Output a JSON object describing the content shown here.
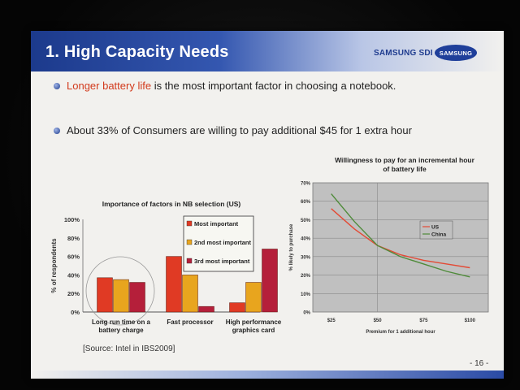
{
  "slide": {
    "title": "1. High Capacity Needs",
    "brand_text": "SAMSUNG SDI",
    "brand_logo_text": "SAMSUNG",
    "page_number": "- 16 -",
    "source": "[Source: Intel in IBS2009]",
    "bullets": [
      {
        "highlight": "Longer battery life",
        "rest": " is the most important factor in choosing a notebook."
      },
      {
        "highlight": "",
        "rest": "About 33% of Consumers are willing to pay additional $45 for 1 extra hour"
      }
    ],
    "colors": {
      "title_bar": "#1c3a8c",
      "highlight": "#d23a1c",
      "bar_1st": "#e03a24",
      "bar_2nd": "#e8a51e",
      "bar_3rd": "#b51f3a",
      "line_us": "#e34a35",
      "line_china": "#4f8b3a"
    }
  },
  "chart_data": [
    {
      "type": "bar",
      "title": "Importance of factors in NB selection (US)",
      "ylabel": "% of respondents",
      "ylim": [
        0,
        100
      ],
      "yticks": [
        "0%",
        "20%",
        "40%",
        "60%",
        "80%",
        "100%"
      ],
      "yticks_values": [
        0,
        20,
        40,
        60,
        80,
        100
      ],
      "categories": [
        "Long run time on a battery charge",
        "Fast processor",
        "High performance graphics card"
      ],
      "category_lines": [
        [
          "Long run time on a",
          "battery charge"
        ],
        [
          "Fast processor"
        ],
        [
          "High performance",
          "graphics card"
        ]
      ],
      "legend_position": "top-center",
      "series": [
        {
          "name": "Most important",
          "values": [
            37,
            60,
            10
          ]
        },
        {
          "name": "2nd most important",
          "values": [
            35,
            40,
            32
          ]
        },
        {
          "name": "3rd most important",
          "values": [
            32,
            6,
            68
          ]
        }
      ]
    },
    {
      "type": "line",
      "title": "Willingness to pay for an incremental hour of battery life",
      "title_lines": [
        "Willingness to pay for an incremental hour",
        "of battery life"
      ],
      "xlabel": "Premium for 1 additional hour",
      "ylabel": "% likely to purchase",
      "x": [
        25,
        50,
        75,
        100
      ],
      "xticks": [
        "$25",
        "$50",
        "$75",
        "$100"
      ],
      "xlim": [
        15,
        110
      ],
      "ylim": [
        0,
        70
      ],
      "yticks": [
        "0%",
        "10%",
        "20%",
        "30%",
        "40%",
        "50%",
        "60%",
        "70%"
      ],
      "yticks_values": [
        0,
        10,
        20,
        30,
        40,
        50,
        60,
        70
      ],
      "grid": true,
      "legend_position": "center-right",
      "series": [
        {
          "name": "US",
          "x": [
            25,
            37.5,
            50,
            62.5,
            75,
            87.5,
            100
          ],
          "values": [
            56,
            45,
            36,
            31,
            28,
            26,
            24
          ]
        },
        {
          "name": "China",
          "x": [
            25,
            37.5,
            50,
            62.5,
            75,
            87.5,
            100
          ],
          "values": [
            64,
            49,
            36,
            30,
            26,
            22,
            19
          ]
        }
      ]
    }
  ]
}
